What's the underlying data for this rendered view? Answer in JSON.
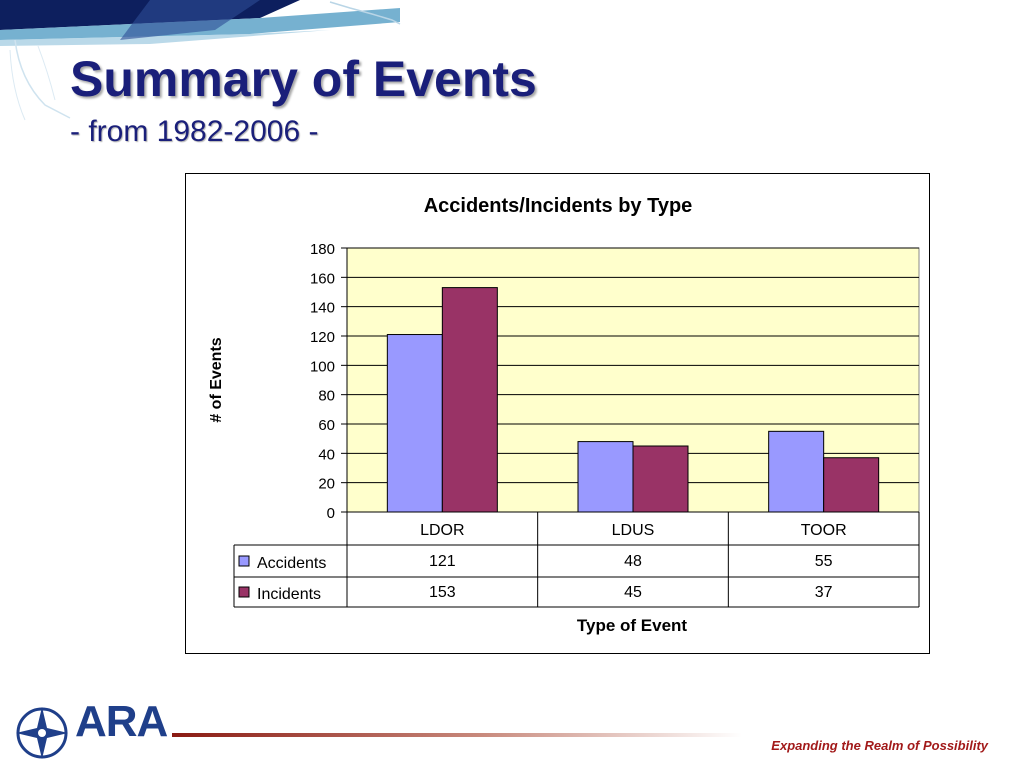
{
  "slide": {
    "title": "Summary of Events",
    "subtitle": "- from 1982-2006 -"
  },
  "footer": {
    "logo": "ARA",
    "tagline": "Expanding the Realm of Possibility"
  },
  "colors": {
    "title": "#1a1f7a",
    "plot_background": "#ffffcc",
    "accidents": "#9999ff",
    "incidents": "#993366",
    "tagline": "#a21a1a",
    "logo": "#1f3f8a"
  },
  "chart_data": {
    "type": "bar",
    "title": "Accidents/Incidents by Type",
    "xlabel": "Type of Event",
    "ylabel": "# of Events",
    "ylim": [
      0,
      180
    ],
    "yticks": [
      0,
      20,
      40,
      60,
      80,
      100,
      120,
      140,
      160,
      180
    ],
    "grid": true,
    "legend": "data-table",
    "categories": [
      "LDOR",
      "LDUS",
      "TOOR"
    ],
    "series": [
      {
        "name": "Accidents",
        "values": [
          121,
          48,
          55
        ],
        "color": "#9999ff"
      },
      {
        "name": "Incidents",
        "values": [
          153,
          45,
          37
        ],
        "color": "#993366"
      }
    ]
  }
}
